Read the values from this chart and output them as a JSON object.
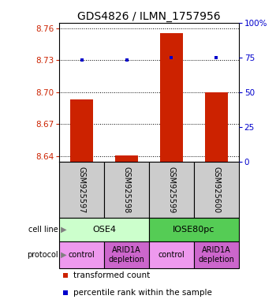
{
  "title": "GDS4826 / ILMN_1757956",
  "samples": [
    "GSM925597",
    "GSM925598",
    "GSM925599",
    "GSM925600"
  ],
  "bar_values": [
    8.693,
    8.641,
    8.755,
    8.7
  ],
  "percentile_values": [
    73,
    73,
    75,
    75
  ],
  "ylim_left": [
    8.635,
    8.765
  ],
  "ylim_right": [
    0,
    100
  ],
  "yticks_left": [
    8.64,
    8.67,
    8.7,
    8.73,
    8.76
  ],
  "yticks_right": [
    0,
    25,
    50,
    75,
    100
  ],
  "bar_color": "#cc2200",
  "dot_color": "#0000cc",
  "bar_bottom": 8.635,
  "cell_lines": [
    "OSE4",
    "IOSE80pc"
  ],
  "cell_line_colors": [
    "#ccffcc",
    "#55cc55"
  ],
  "protocols": [
    "control",
    "ARID1A\ndepletion",
    "control",
    "ARID1A\ndepletion"
  ],
  "protocol_colors": [
    "#ee99ee",
    "#cc66cc",
    "#ee99ee",
    "#cc66cc"
  ],
  "legend_bar_label": "transformed count",
  "legend_dot_label": "percentile rank within the sample",
  "background_color": "#ffffff",
  "title_fontsize": 10,
  "tick_fontsize": 7.5,
  "sample_fontsize": 7,
  "cell_fontsize": 8,
  "proto_fontsize": 7,
  "legend_fontsize": 7.5
}
